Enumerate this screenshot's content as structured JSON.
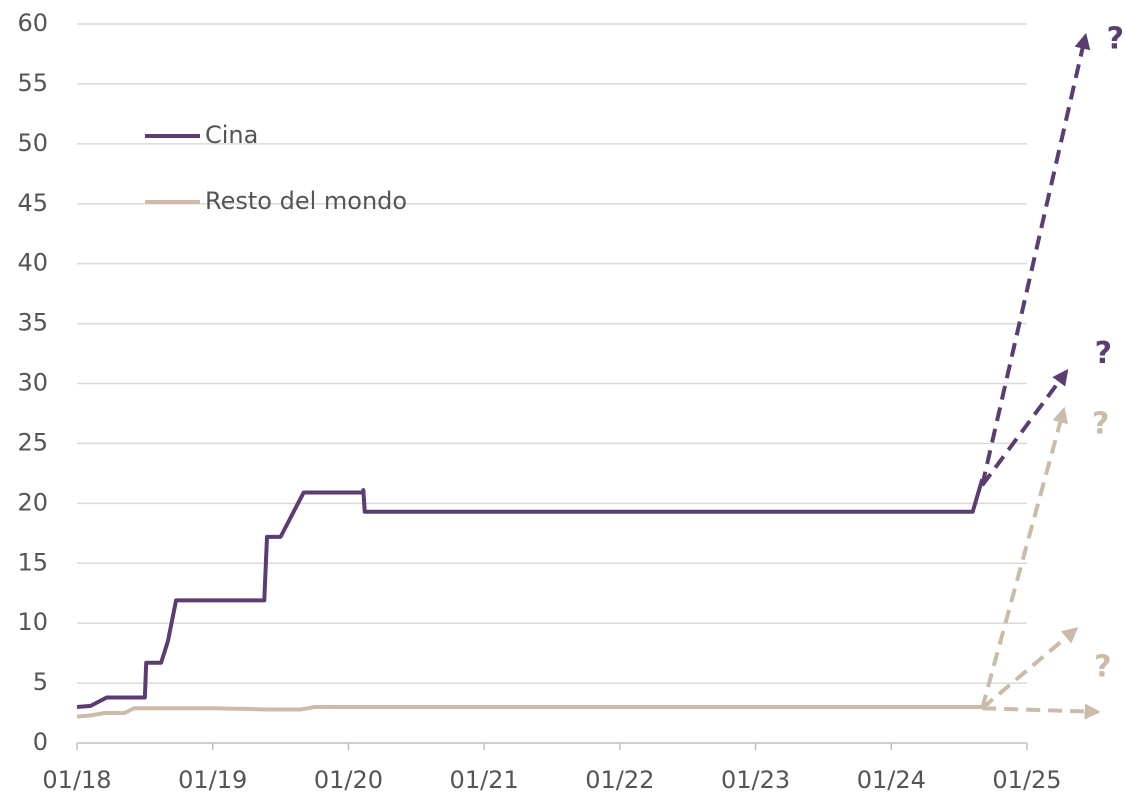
{
  "chart_data": {
    "type": "line",
    "xlim": [
      2018,
      2025
    ],
    "xticks": [
      {
        "value": 2018,
        "label": "01/18"
      },
      {
        "value": 2019,
        "label": "01/19"
      },
      {
        "value": 2020,
        "label": "01/20"
      },
      {
        "value": 2021,
        "label": "01/21"
      },
      {
        "value": 2022,
        "label": "01/22"
      },
      {
        "value": 2023,
        "label": "01/23"
      },
      {
        "value": 2024,
        "label": "01/24"
      },
      {
        "value": 2025,
        "label": "01/25"
      }
    ],
    "ylim": [
      0,
      60
    ],
    "yticks": [
      0,
      5,
      10,
      15,
      20,
      25,
      30,
      35,
      40,
      45,
      50,
      55,
      60
    ],
    "grid": true,
    "legend": "upper left",
    "series": [
      {
        "name": "Cina",
        "color": "#5b3d72",
        "x": [
          2018.0,
          2018.1,
          2018.22,
          2018.5,
          2018.51,
          2018.62,
          2018.67,
          2018.73,
          2019.38,
          2019.4,
          2019.5,
          2019.67,
          2020.1,
          2020.11,
          2020.12,
          2024.6,
          2024.67
        ],
        "values": [
          3.0,
          3.1,
          3.8,
          3.8,
          6.7,
          6.7,
          8.5,
          11.9,
          11.9,
          17.2,
          17.2,
          20.9,
          20.9,
          21.1,
          19.3,
          19.3,
          22.0
        ],
        "scenarios": [
          {
            "x": [
              2024.67,
              2025.43
            ],
            "values": [
              21.5,
              59.0
            ],
            "label": "?"
          },
          {
            "x": [
              2024.67,
              2025.29
            ],
            "values": [
              21.5,
              31.0
            ],
            "label": "?"
          }
        ]
      },
      {
        "name": "Resto del mondo",
        "color": "#cbbba8",
        "x": [
          2018.0,
          2018.1,
          2018.2,
          2018.35,
          2018.42,
          2019.0,
          2019.4,
          2019.65,
          2019.75,
          2020.0,
          2020.2,
          2024.67
        ],
        "values": [
          2.2,
          2.3,
          2.5,
          2.5,
          2.9,
          2.9,
          2.8,
          2.8,
          3.0,
          3.0,
          3.0,
          3.0
        ],
        "scenarios": [
          {
            "x": [
              2024.67,
              2025.27
            ],
            "values": [
              2.9,
              27.8
            ],
            "label": "?"
          },
          {
            "x": [
              2024.67,
              2025.36
            ],
            "values": [
              2.9,
              9.5
            ],
            "label": "?"
          },
          {
            "x": [
              2024.67,
              2025.52
            ],
            "values": [
              2.9,
              2.6
            ]
          }
        ]
      }
    ]
  }
}
